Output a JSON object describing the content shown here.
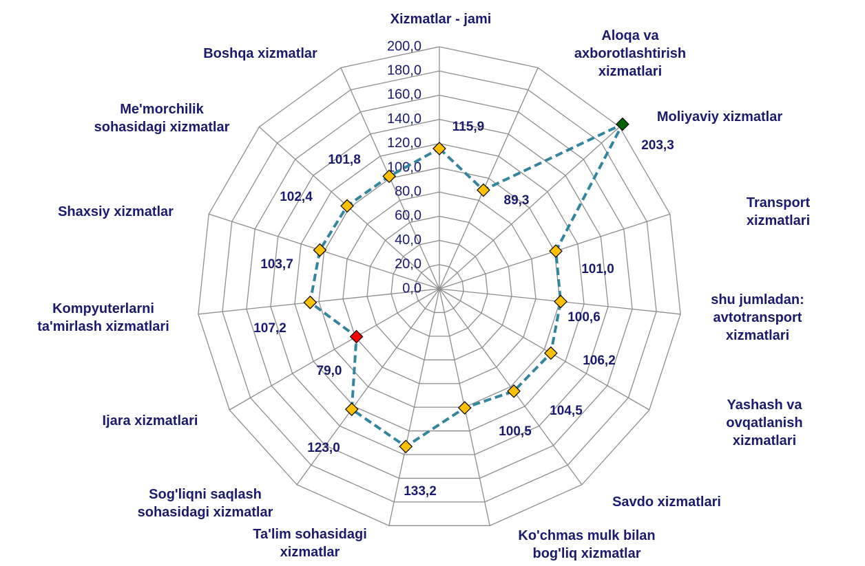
{
  "chart_data": {
    "type": "radar",
    "categories": [
      "Xizmatlar - jami",
      "Aloqa va\naxborotlashtirish\nxizmatlari",
      "Moliyaviy xizmatlar",
      "Transport xizmatlari",
      "shu jumladan:\navtotransport\nxizmatlari",
      "Yashash  va\novqatlanish xizmatlari",
      "Savdo xizmatlari",
      "Ko'chmas mulk bilan\nbog'liq xizmatlar",
      "Ta'lim sohasidagi\nxizmatlar",
      "Sog'liqni saqlash\nsohasidagi xizmatlar",
      "Ijara xizmatlari",
      "Kompyuterlarni\nta'mirlash xizmatlari",
      "Shaxsiy xizmatlar",
      "Me'morchilik\nsohasidagi xizmatlar",
      "Boshqa xizmatlar"
    ],
    "values": [
      115.9,
      89.3,
      203.3,
      101.0,
      100.6,
      106.2,
      104.5,
      100.5,
      133.2,
      123.0,
      79.0,
      107.2,
      103.7,
      102.4,
      101.8
    ],
    "value_labels": [
      "115,9",
      "89,3",
      "203,3",
      "101,0",
      "100,6",
      "106,2",
      "104,5",
      "100,5",
      "133,2",
      "123,0",
      "79,0",
      "107,2",
      "103,7",
      "102,4",
      "101,8"
    ],
    "color": "#31859c",
    "marker_colors": [
      "#ffc000",
      "#ffc000",
      "#006400",
      "#ffc000",
      "#ffc000",
      "#ffc000",
      "#ffc000",
      "#ffc000",
      "#ffc000",
      "#ffc000",
      "#ff0000",
      "#ffc000",
      "#ffc000",
      "#ffc000",
      "#ffc000"
    ],
    "ylim": [
      0,
      200
    ],
    "yticks": [
      {
        "value": 0,
        "label": "0,0"
      },
      {
        "value": 20,
        "label": "20,0"
      },
      {
        "value": 40,
        "label": "40,0"
      },
      {
        "value": 60,
        "label": "60,0"
      },
      {
        "value": 80,
        "label": "80,0"
      },
      {
        "value": 100,
        "label": "100,0"
      },
      {
        "value": 120,
        "label": "120,0"
      },
      {
        "value": 140,
        "label": "140,0"
      },
      {
        "value": 160,
        "label": "160,0"
      },
      {
        "value": 180,
        "label": "180,0"
      },
      {
        "value": 200,
        "label": "200,0"
      }
    ],
    "grid": true
  }
}
